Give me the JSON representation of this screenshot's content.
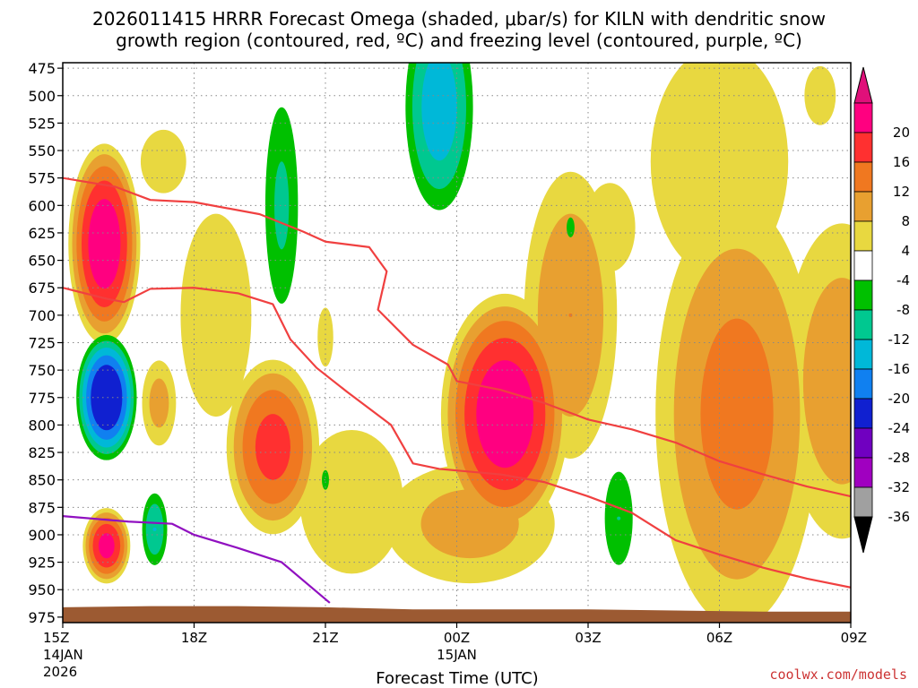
{
  "chart_data": {
    "type": "heatmap",
    "title_line1": "2026011415 HRRR Forecast Omega (shaded, μbar/s) for KILN with dendritic snow",
    "title_line2": "growth region (contoured, red, ºC) and freezing level (contoured, purple, ºC)",
    "xlabel": "Forecast Time (UTC)",
    "credit": "coolwx.com/models",
    "y_ticks": [
      475,
      500,
      525,
      550,
      575,
      600,
      625,
      650,
      675,
      700,
      725,
      750,
      775,
      800,
      825,
      850,
      875,
      900,
      925,
      950,
      975
    ],
    "y_range": [
      470,
      980
    ],
    "x_range_hours": [
      0,
      18
    ],
    "x_ticks": [
      {
        "hour": 0,
        "label": "15Z",
        "sub1": "14JAN",
        "sub2": "2026"
      },
      {
        "hour": 3,
        "label": "18Z",
        "sub1": "",
        "sub2": ""
      },
      {
        "hour": 6,
        "label": "21Z",
        "sub1": "",
        "sub2": ""
      },
      {
        "hour": 9,
        "label": "00Z",
        "sub1": "15JAN",
        "sub2": ""
      },
      {
        "hour": 12,
        "label": "03Z",
        "sub1": "",
        "sub2": ""
      },
      {
        "hour": 15,
        "label": "06Z",
        "sub1": "",
        "sub2": ""
      },
      {
        "hour": 18,
        "label": "09Z",
        "sub1": "",
        "sub2": ""
      }
    ],
    "colorbar": {
      "labels": [
        "20",
        "16",
        "12",
        "8",
        "4",
        "-4",
        "-8",
        "-12",
        "-16",
        "-20",
        "-24",
        "-28",
        "-32",
        "-36"
      ],
      "colors": [
        "#ff0080",
        "#ff3030",
        "#f07820",
        "#e8a030",
        "#e8d840",
        "#ffffff",
        "#00c000",
        "#00c890",
        "#00b8d8",
        "#1080f0",
        "#1020d0",
        "#7000c0",
        "#a000c0",
        "#a0a0a0"
      ],
      "top_color": "#e0107a",
      "bottom_color": "#000000"
    },
    "omega_features": [
      {
        "kind": "up",
        "hour": 0.95,
        "p": 635,
        "hw": 0.9,
        "hp": 100,
        "peak": 24
      },
      {
        "kind": "up",
        "hour": 1.0,
        "p": 910,
        "hw": 0.6,
        "hp": 38,
        "peak": 22
      },
      {
        "kind": "up",
        "hour": 2.3,
        "p": 560,
        "hw": 0.9,
        "hp": 50,
        "peak": 6
      },
      {
        "kind": "up",
        "hour": 2.2,
        "p": 780,
        "hw": 0.5,
        "hp": 50,
        "peak": 10
      },
      {
        "kind": "up",
        "hour": 4.8,
        "p": 820,
        "hw": 1.2,
        "hp": 90,
        "peak": 18
      },
      {
        "kind": "up",
        "hour": 3.5,
        "p": 700,
        "hw": 1.4,
        "hp": 160,
        "peak": 6
      },
      {
        "kind": "up",
        "hour": 6.0,
        "p": 720,
        "hw": 0.4,
        "hp": 60,
        "peak": 5
      },
      {
        "kind": "up",
        "hour": 6.6,
        "p": 870,
        "hw": 1.8,
        "hp": 100,
        "peak": 7
      },
      {
        "kind": "up",
        "hour": 10.1,
        "p": 790,
        "hw": 1.6,
        "hp": 120,
        "peak": 24
      },
      {
        "kind": "up",
        "hour": 9.3,
        "p": 890,
        "hw": 2.5,
        "hp": 70,
        "peak": 10
      },
      {
        "kind": "up",
        "hour": 11.6,
        "p": 700,
        "hw": 1.3,
        "hp": 160,
        "peak": 12
      },
      {
        "kind": "up",
        "hour": 12.5,
        "p": 620,
        "hw": 1.0,
        "hp": 70,
        "peak": 6
      },
      {
        "kind": "up",
        "hour": 15.0,
        "p": 560,
        "hw": 2.4,
        "hp": 160,
        "peak": 7
      },
      {
        "kind": "up",
        "hour": 15.4,
        "p": 790,
        "hw": 2.2,
        "hp": 230,
        "peak": 14
      },
      {
        "kind": "up",
        "hour": 17.8,
        "p": 760,
        "hw": 1.7,
        "hp": 180,
        "peak": 11
      },
      {
        "kind": "up",
        "hour": 17.3,
        "p": 500,
        "hw": 0.8,
        "hp": 60,
        "peak": 5
      },
      {
        "kind": "down",
        "hour": 1.0,
        "p": 775,
        "hw": 0.75,
        "hp": 62,
        "peak": 26
      },
      {
        "kind": "down",
        "hour": 2.1,
        "p": 895,
        "hw": 0.35,
        "hp": 40,
        "peak": 12
      },
      {
        "kind": "down",
        "hour": 5.0,
        "p": 600,
        "hw": 0.5,
        "hp": 120,
        "peak": 9
      },
      {
        "kind": "down",
        "hour": 6.0,
        "p": 850,
        "hw": 0.18,
        "hp": 20,
        "peak": 5
      },
      {
        "kind": "down",
        "hour": 8.6,
        "p": 510,
        "hw": 0.9,
        "hp": 110,
        "peak": 15
      },
      {
        "kind": "down",
        "hour": 12.7,
        "p": 885,
        "hw": 0.45,
        "hp": 60,
        "peak": 8
      },
      {
        "kind": "down",
        "hour": 11.6,
        "p": 620,
        "hw": 0.2,
        "hp": 20,
        "peak": 1
      }
    ],
    "dgz_top": {
      "name": "-18 °C dendritic growth top",
      "points": [
        [
          0,
          575
        ],
        [
          1.2,
          583
        ],
        [
          2,
          595
        ],
        [
          3,
          597
        ],
        [
          4.5,
          608
        ],
        [
          5.5,
          624
        ],
        [
          6,
          633
        ],
        [
          7,
          638
        ],
        [
          7.4,
          660
        ],
        [
          7.2,
          695
        ],
        [
          8,
          727
        ],
        [
          8.8,
          745
        ],
        [
          9,
          760
        ],
        [
          10,
          768
        ],
        [
          11,
          780
        ],
        [
          12,
          795
        ],
        [
          13,
          804
        ],
        [
          14,
          816
        ],
        [
          15,
          833
        ],
        [
          16,
          845
        ],
        [
          17,
          856
        ],
        [
          18,
          865
        ]
      ]
    },
    "dgz_bottom": {
      "name": "-12 °C dendritic growth bottom",
      "points": [
        [
          0,
          675
        ],
        [
          1,
          685
        ],
        [
          1.4,
          688
        ],
        [
          2,
          676
        ],
        [
          3,
          675
        ],
        [
          4,
          680
        ],
        [
          4.8,
          690
        ],
        [
          5.2,
          722
        ],
        [
          5.8,
          748
        ],
        [
          6.5,
          770
        ],
        [
          7.5,
          800
        ],
        [
          8,
          835
        ],
        [
          8.6,
          840
        ],
        [
          10,
          845
        ],
        [
          11,
          852
        ],
        [
          12,
          865
        ],
        [
          13,
          880
        ],
        [
          14,
          905
        ],
        [
          15,
          918
        ],
        [
          16,
          930
        ],
        [
          17,
          940
        ],
        [
          18,
          948
        ]
      ]
    },
    "freezing_level": {
      "name": "0 °C freezing level",
      "points": [
        [
          0,
          883
        ],
        [
          1.5,
          888
        ],
        [
          2.5,
          890
        ],
        [
          3,
          900
        ],
        [
          4,
          912
        ],
        [
          5,
          925
        ],
        [
          6.1,
          962
        ]
      ]
    },
    "terrain_base_hpa": [
      [
        0,
        966
      ],
      [
        2,
        965
      ],
      [
        4,
        965
      ],
      [
        6,
        966
      ],
      [
        8,
        968
      ],
      [
        10,
        968
      ],
      [
        12,
        968
      ],
      [
        14,
        969
      ],
      [
        16,
        970
      ],
      [
        18,
        970
      ]
    ]
  }
}
